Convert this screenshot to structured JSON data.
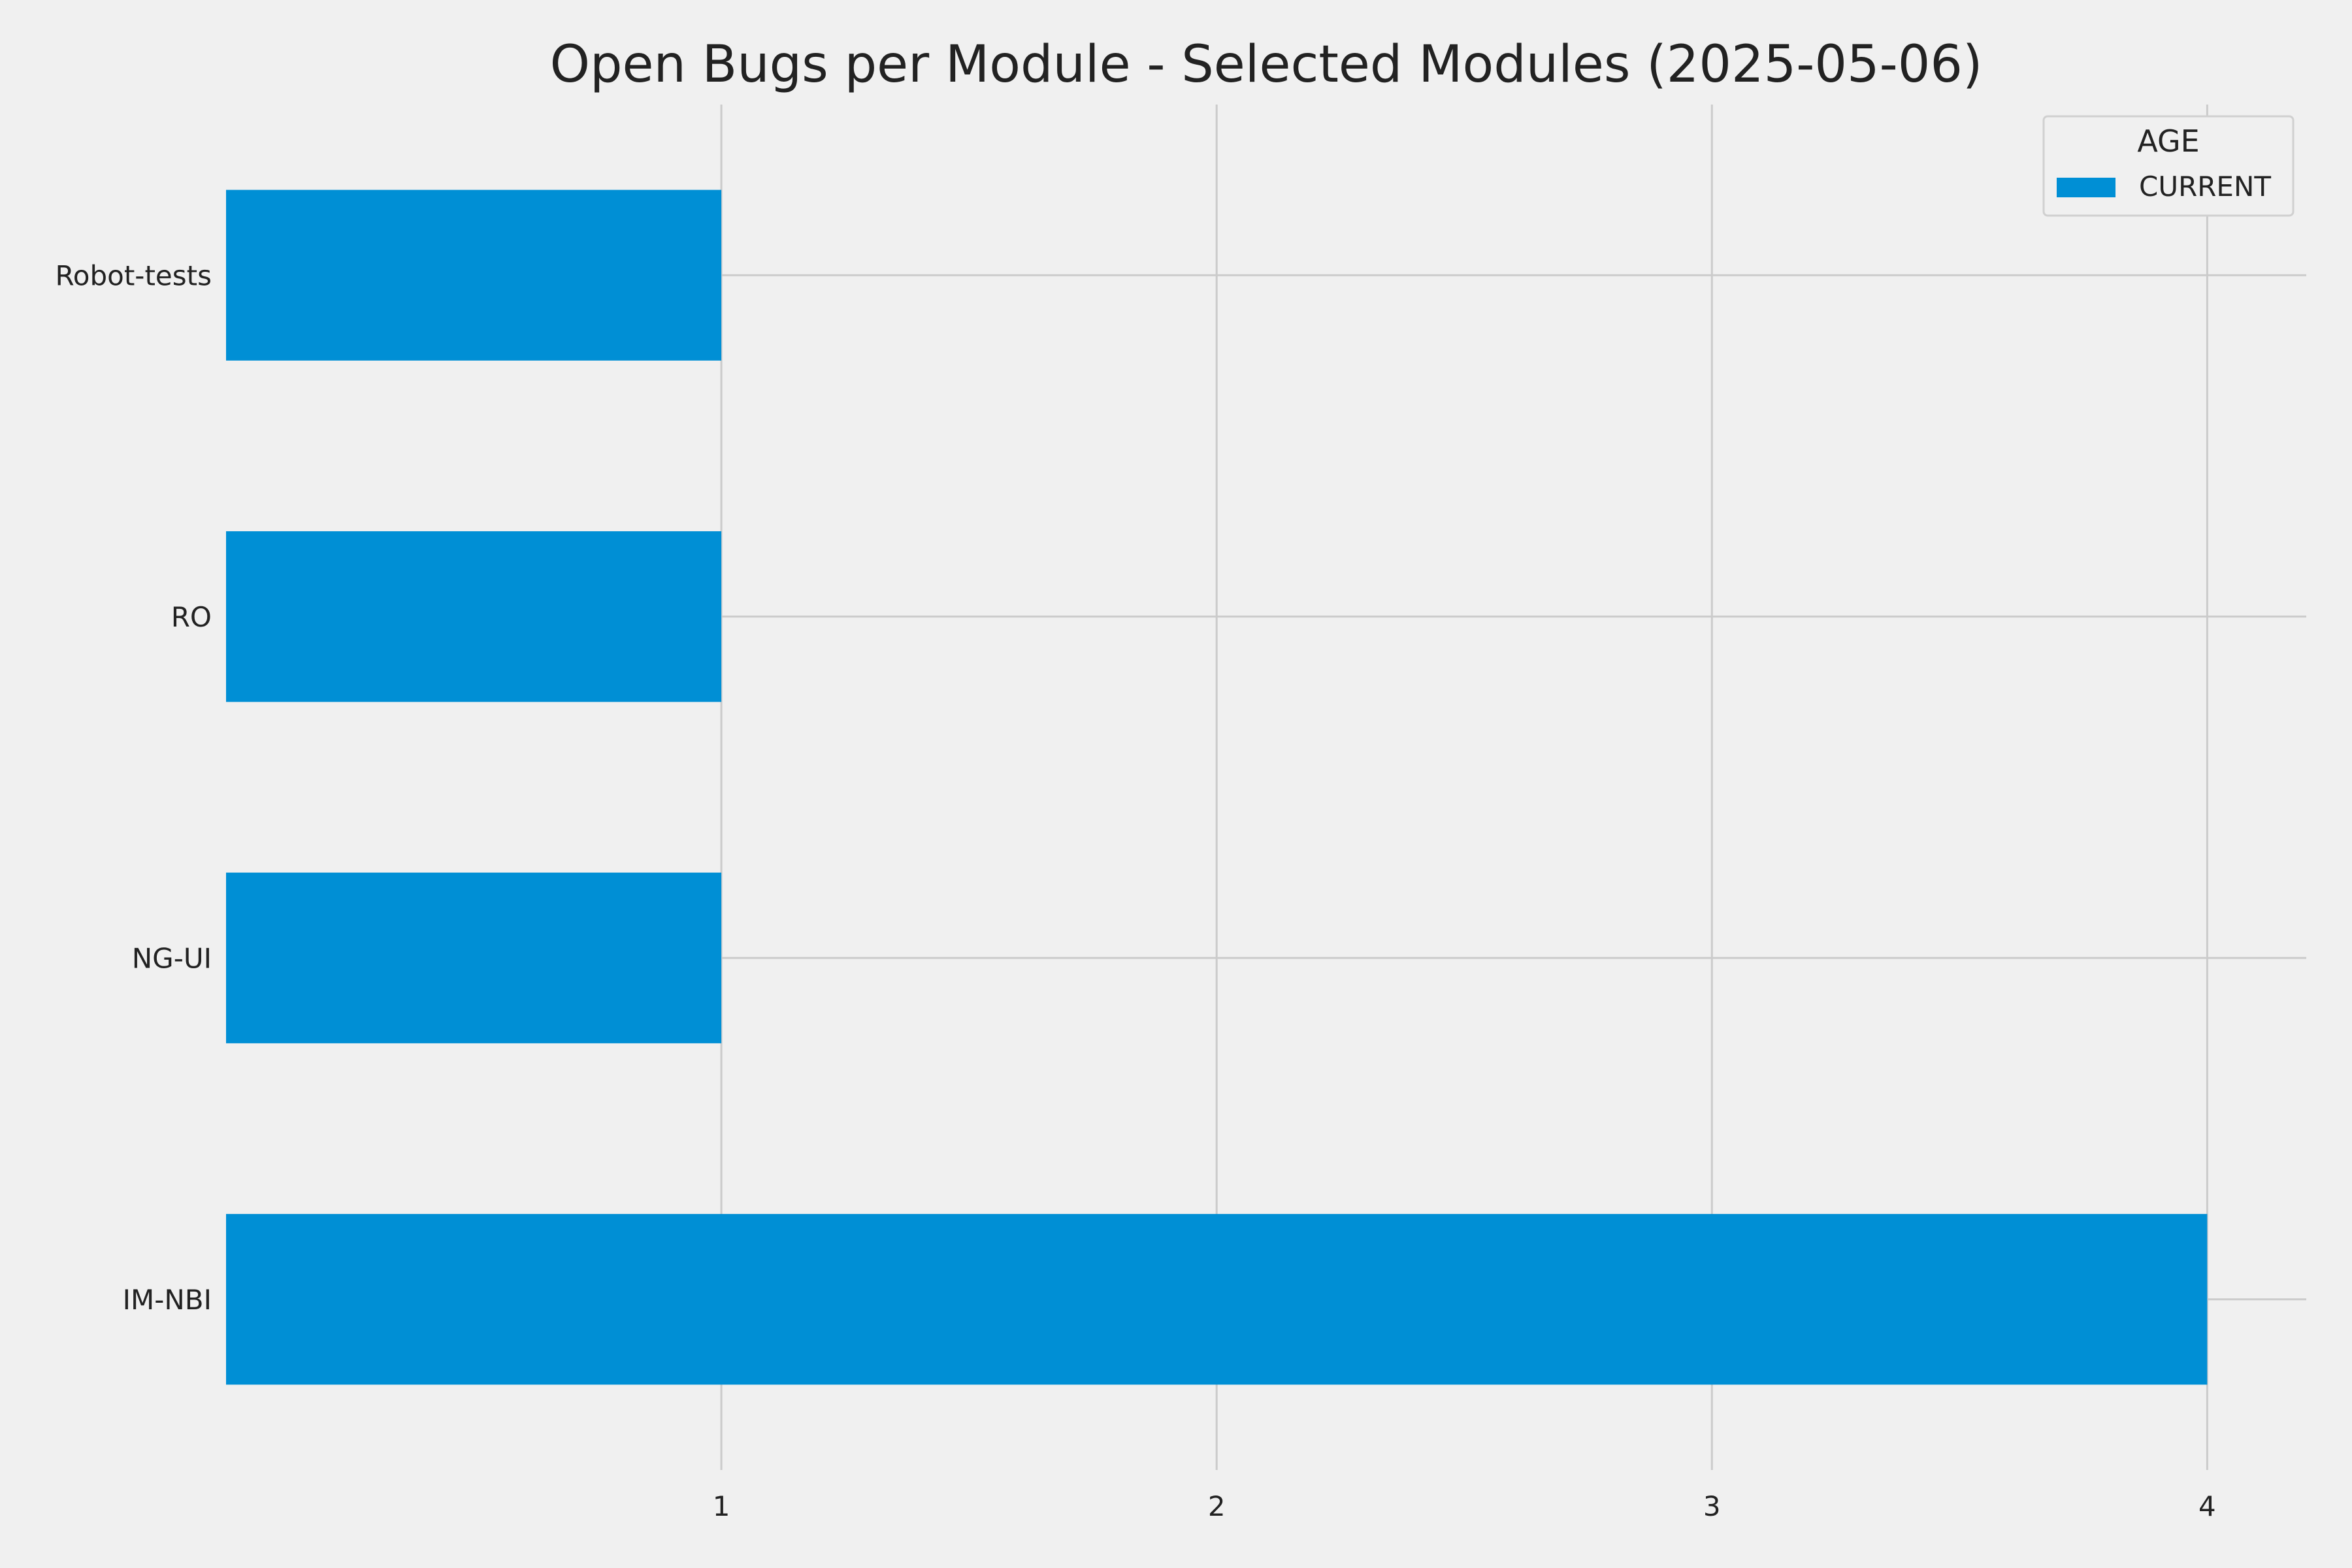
{
  "chart_data": {
    "type": "bar",
    "orientation": "horizontal",
    "title": "Open Bugs per Module - Selected Modules (2025-05-06)",
    "xlabel": "",
    "ylabel": "",
    "categories": [
      "IM-NBI",
      "NG-UI",
      "RO",
      "Robot-tests"
    ],
    "series": [
      {
        "name": "CURRENT",
        "values": [
          4,
          1,
          1,
          1
        ],
        "color": "#008fd5"
      }
    ],
    "xlim": [
      0,
      4.2
    ],
    "xticks": [
      1,
      2,
      3,
      4
    ],
    "grid": true,
    "legend": {
      "title": "AGE",
      "placement": "top-right"
    }
  }
}
